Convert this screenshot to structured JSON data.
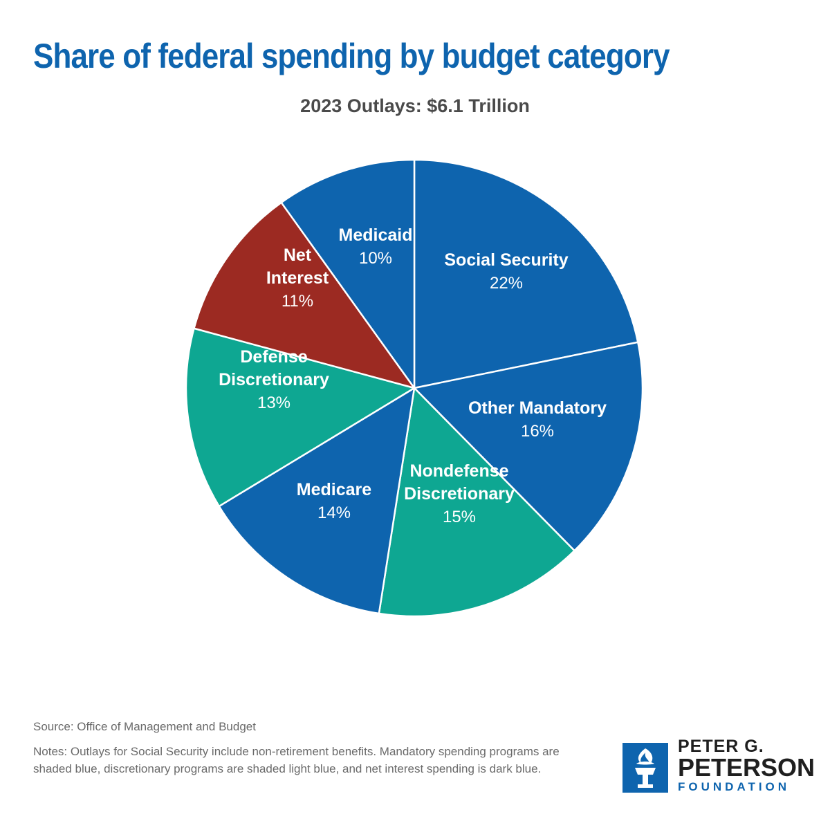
{
  "header": {
    "title": "Share of federal spending by budget category",
    "subtitle": "2023 Outlays: $6.1 Trillion"
  },
  "chart_data": {
    "type": "pie",
    "title": "Share of federal spending by budget category",
    "subtitle": "2023 Outlays: $6.1 Trillion",
    "start_angle_deg": 0,
    "direction": "clockwise",
    "slices": [
      {
        "label": [
          "Social Security"
        ],
        "value": 22,
        "value_label": "22%",
        "color": "#0e64ae"
      },
      {
        "label": [
          "Other Mandatory"
        ],
        "value": 16,
        "value_label": "16%",
        "color": "#0e64ae"
      },
      {
        "label": [
          "Nondefense",
          "Discretionary"
        ],
        "value": 15,
        "value_label": "15%",
        "color": "#0ea792"
      },
      {
        "label": [
          "Medicare"
        ],
        "value": 14,
        "value_label": "14%",
        "color": "#0e64ae"
      },
      {
        "label": [
          "Defense",
          "Discretionary"
        ],
        "value": 13,
        "value_label": "13%",
        "color": "#0ea792"
      },
      {
        "label": [
          "Net",
          "Interest"
        ],
        "value": 11,
        "value_label": "11%",
        "color": "#9c2a22"
      },
      {
        "label": [
          "Medicaid"
        ],
        "value": 10,
        "value_label": "10%",
        "color": "#0e64ae"
      }
    ]
  },
  "footer": {
    "source": "Source: Office of Management and Budget",
    "notes": "Notes: Outlays for Social Security include non-retirement benefits. Mandatory spending programs are shaded blue, discretionary programs are shaded light blue, and net interest spending is dark blue."
  },
  "logo": {
    "line1": "PETER G.",
    "line2": "PETERSON",
    "line3": "FOUNDATION",
    "icon": "torch-icon"
  }
}
